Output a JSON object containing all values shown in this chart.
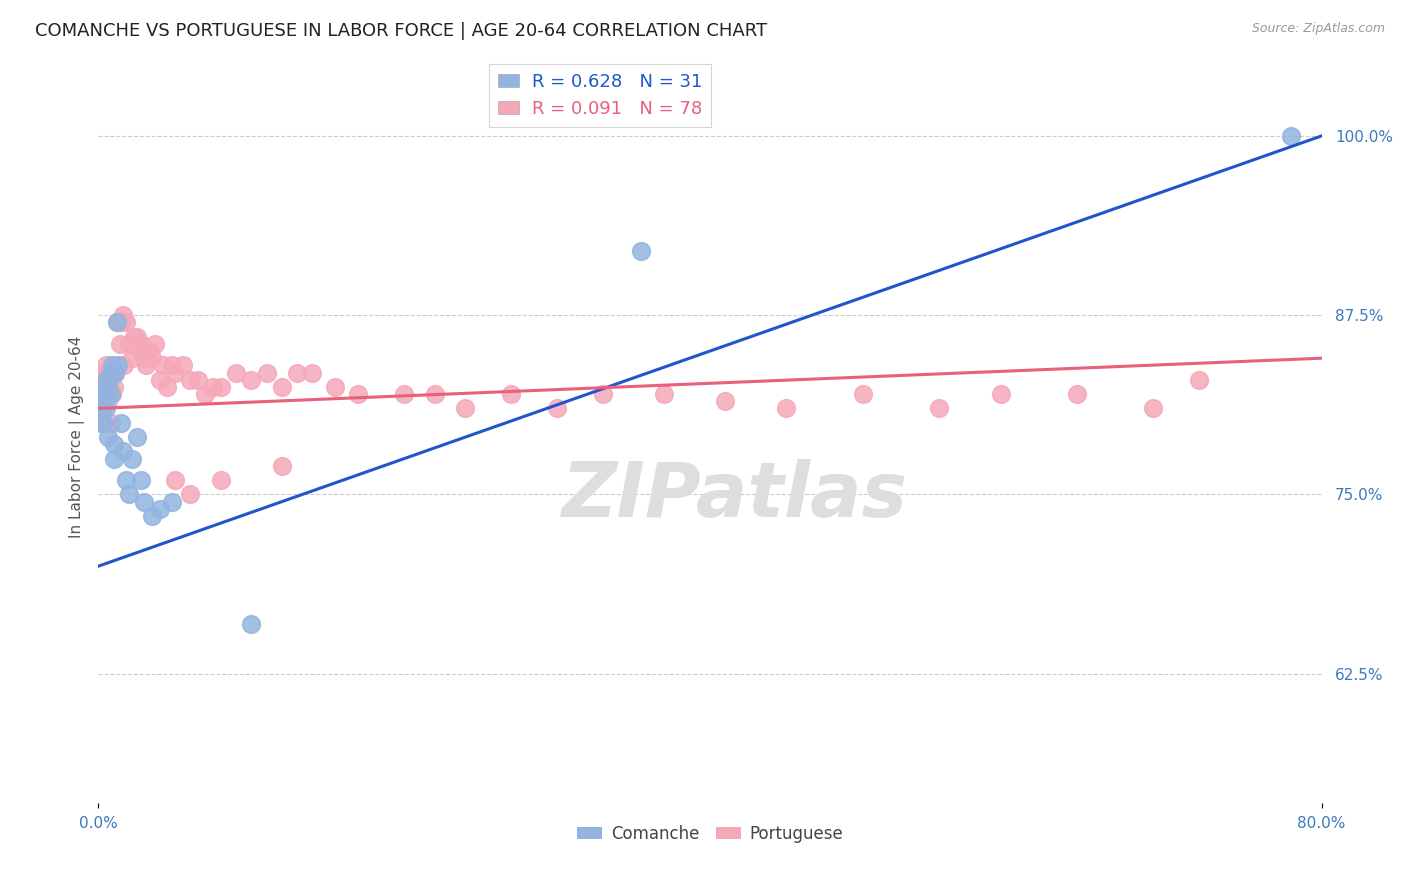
{
  "title": "COMANCHE VS PORTUGUESE IN LABOR FORCE | AGE 20-64 CORRELATION CHART",
  "source": "Source: ZipAtlas.com",
  "ylabel": "In Labor Force | Age 20-64",
  "R_comanche": 0.628,
  "N_comanche": 31,
  "R_portuguese": 0.091,
  "N_portuguese": 78,
  "comanche_color": "#92b4e0",
  "portuguese_color": "#f5a8b8",
  "comanche_line_color": "#2255cc",
  "portuguese_line_color": "#e8607a",
  "watermark": "ZIPatlas",
  "xlim": [
    0.0,
    0.8
  ],
  "ylim": [
    0.535,
    1.045
  ],
  "comanche_x": [
    0.001,
    0.002,
    0.003,
    0.003,
    0.004,
    0.005,
    0.005,
    0.006,
    0.007,
    0.008,
    0.008,
    0.009,
    0.01,
    0.01,
    0.011,
    0.012,
    0.013,
    0.015,
    0.016,
    0.018,
    0.02,
    0.022,
    0.025,
    0.028,
    0.03,
    0.035,
    0.04,
    0.048,
    0.1,
    0.355,
    0.78
  ],
  "comanche_y": [
    0.82,
    0.8,
    0.81,
    0.8,
    0.82,
    0.83,
    0.81,
    0.79,
    0.83,
    0.835,
    0.82,
    0.84,
    0.785,
    0.775,
    0.835,
    0.87,
    0.84,
    0.8,
    0.78,
    0.76,
    0.75,
    0.775,
    0.79,
    0.76,
    0.745,
    0.735,
    0.74,
    0.745,
    0.66,
    0.92,
    1.0
  ],
  "portuguese_x": [
    0.001,
    0.001,
    0.002,
    0.002,
    0.003,
    0.003,
    0.003,
    0.004,
    0.004,
    0.005,
    0.005,
    0.005,
    0.006,
    0.006,
    0.007,
    0.007,
    0.008,
    0.008,
    0.009,
    0.009,
    0.01,
    0.011,
    0.012,
    0.013,
    0.014,
    0.015,
    0.016,
    0.017,
    0.018,
    0.02,
    0.022,
    0.023,
    0.025,
    0.027,
    0.028,
    0.03,
    0.031,
    0.033,
    0.035,
    0.037,
    0.04,
    0.042,
    0.045,
    0.048,
    0.05,
    0.055,
    0.06,
    0.065,
    0.07,
    0.075,
    0.08,
    0.09,
    0.1,
    0.11,
    0.12,
    0.13,
    0.14,
    0.155,
    0.17,
    0.2,
    0.22,
    0.24,
    0.27,
    0.3,
    0.33,
    0.37,
    0.41,
    0.45,
    0.5,
    0.55,
    0.59,
    0.64,
    0.69,
    0.72,
    0.05,
    0.06,
    0.08,
    0.12
  ],
  "portuguese_y": [
    0.82,
    0.81,
    0.825,
    0.815,
    0.83,
    0.82,
    0.835,
    0.8,
    0.83,
    0.825,
    0.84,
    0.82,
    0.815,
    0.82,
    0.825,
    0.82,
    0.835,
    0.8,
    0.835,
    0.82,
    0.825,
    0.835,
    0.87,
    0.87,
    0.855,
    0.87,
    0.875,
    0.84,
    0.87,
    0.855,
    0.845,
    0.86,
    0.86,
    0.85,
    0.855,
    0.845,
    0.84,
    0.85,
    0.845,
    0.855,
    0.83,
    0.84,
    0.825,
    0.84,
    0.835,
    0.84,
    0.83,
    0.83,
    0.82,
    0.825,
    0.825,
    0.835,
    0.83,
    0.835,
    0.825,
    0.835,
    0.835,
    0.825,
    0.82,
    0.82,
    0.82,
    0.81,
    0.82,
    0.81,
    0.82,
    0.82,
    0.815,
    0.81,
    0.82,
    0.81,
    0.82,
    0.82,
    0.81,
    0.83,
    0.76,
    0.75,
    0.76,
    0.77
  ],
  "background_color": "#FFFFFF",
  "grid_color": "#CCCCCC",
  "title_fontsize": 13,
  "label_fontsize": 11,
  "tick_fontsize": 11,
  "watermark_color": "#DEDEDE",
  "watermark_fontsize": 55,
  "comanche_line_x0": 0.0,
  "comanche_line_y0": 0.7,
  "comanche_line_x1": 0.8,
  "comanche_line_y1": 1.0,
  "portuguese_line_x0": 0.0,
  "portuguese_line_y0": 0.81,
  "portuguese_line_x1": 0.8,
  "portuguese_line_y1": 0.845
}
